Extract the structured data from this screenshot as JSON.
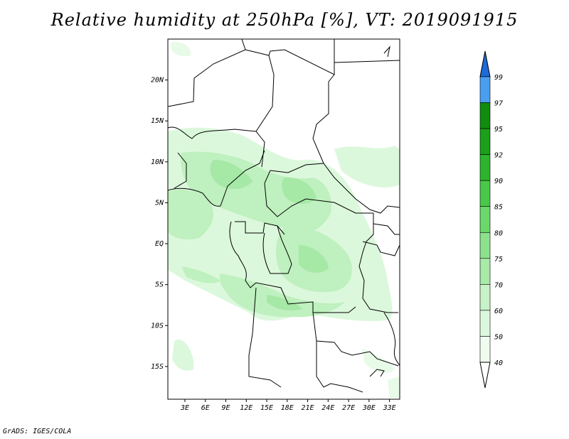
{
  "title": "Relative humidity at 250hPa [%], VT: 2019091915",
  "credit": "GrADS: IGES/COLA",
  "map": {
    "lat_range": [
      -19,
      25
    ],
    "lon_range": [
      0.5,
      34.5
    ],
    "lat_ticks": [
      {
        "value": 20,
        "label": "20N"
      },
      {
        "value": 15,
        "label": "15N"
      },
      {
        "value": 10,
        "label": "10N"
      },
      {
        "value": 5,
        "label": "5N"
      },
      {
        "value": 0,
        "label": "EQ"
      },
      {
        "value": -5,
        "label": "5S"
      },
      {
        "value": -10,
        "label": "10S"
      },
      {
        "value": -15,
        "label": "15S"
      }
    ],
    "lon_ticks": [
      {
        "value": 3,
        "label": "3E"
      },
      {
        "value": 6,
        "label": "6E"
      },
      {
        "value": 9,
        "label": "9E"
      },
      {
        "value": 12,
        "label": "12E"
      },
      {
        "value": 15,
        "label": "15E"
      },
      {
        "value": 18,
        "label": "18E"
      },
      {
        "value": 21,
        "label": "21E"
      },
      {
        "value": 24,
        "label": "24E"
      },
      {
        "value": 27,
        "label": "27E"
      },
      {
        "value": 30,
        "label": "30E"
      },
      {
        "value": 33,
        "label": "33E"
      }
    ]
  },
  "colorbar": {
    "levels": [
      {
        "label": "40",
        "color": "#f0fcf0"
      },
      {
        "label": "50",
        "color": "#dcf8dc"
      },
      {
        "label": "60",
        "color": "#c8f2c8"
      },
      {
        "label": "70",
        "color": "#a8eaa8"
      },
      {
        "label": "75",
        "color": "#8ce28c"
      },
      {
        "label": "80",
        "color": "#6ad86a"
      },
      {
        "label": "85",
        "color": "#4ac84a"
      },
      {
        "label": "90",
        "color": "#2db42d"
      },
      {
        "label": "92",
        "color": "#1aa01a"
      },
      {
        "label": "95",
        "color": "#108c10"
      },
      {
        "label": "97",
        "color": "#4a9ef0"
      },
      {
        "label": "99",
        "color": "#2f7fe0"
      }
    ],
    "lower_color": "#ffffff",
    "upper_color": "#1e6ad8"
  }
}
